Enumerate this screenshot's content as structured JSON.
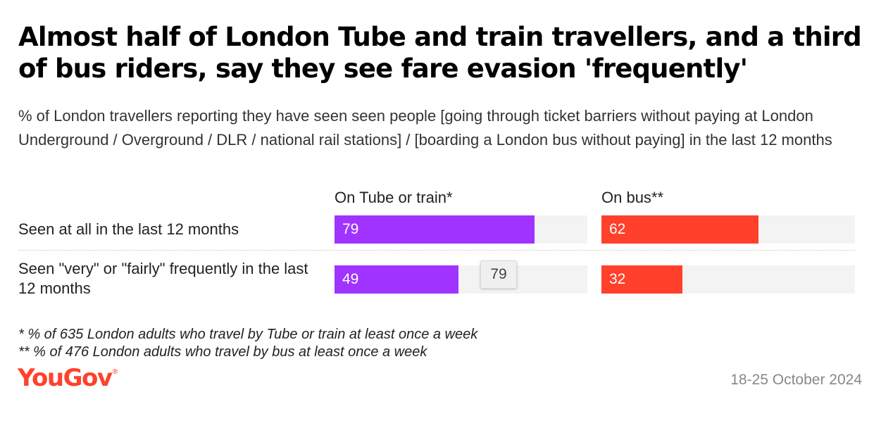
{
  "title": "Almost half of London Tube and train travellers, and a third of bus riders, say they see fare evasion 'frequently'",
  "subtitle": "% of London travellers reporting they have seen seen people [going through ticket barriers without paying at London Underground / Overground / DLR / national rail stations] / [boarding a London bus without paying] in the last 12 months",
  "chart_data": {
    "type": "bar",
    "orientation": "horizontal",
    "categories": [
      "Seen at all in the last 12 months",
      "Seen \"very\" or \"fairly\" frequently in the last 12 months"
    ],
    "series": [
      {
        "name": "On Tube or train*",
        "values": [
          79,
          49
        ],
        "color": "#a033ff"
      },
      {
        "name": "On bus**",
        "values": [
          62,
          32
        ],
        "color": "#ff412c"
      }
    ],
    "xlim": [
      0,
      100
    ],
    "tooltip_value": "79"
  },
  "notes": [
    "* % of 635 London adults who travel by Tube or train at least once a week",
    "** % of 476 London adults who travel by bus at least once a week"
  ],
  "brand": {
    "name": "YouGov",
    "mark": "®"
  },
  "date": "18-25 October 2024"
}
